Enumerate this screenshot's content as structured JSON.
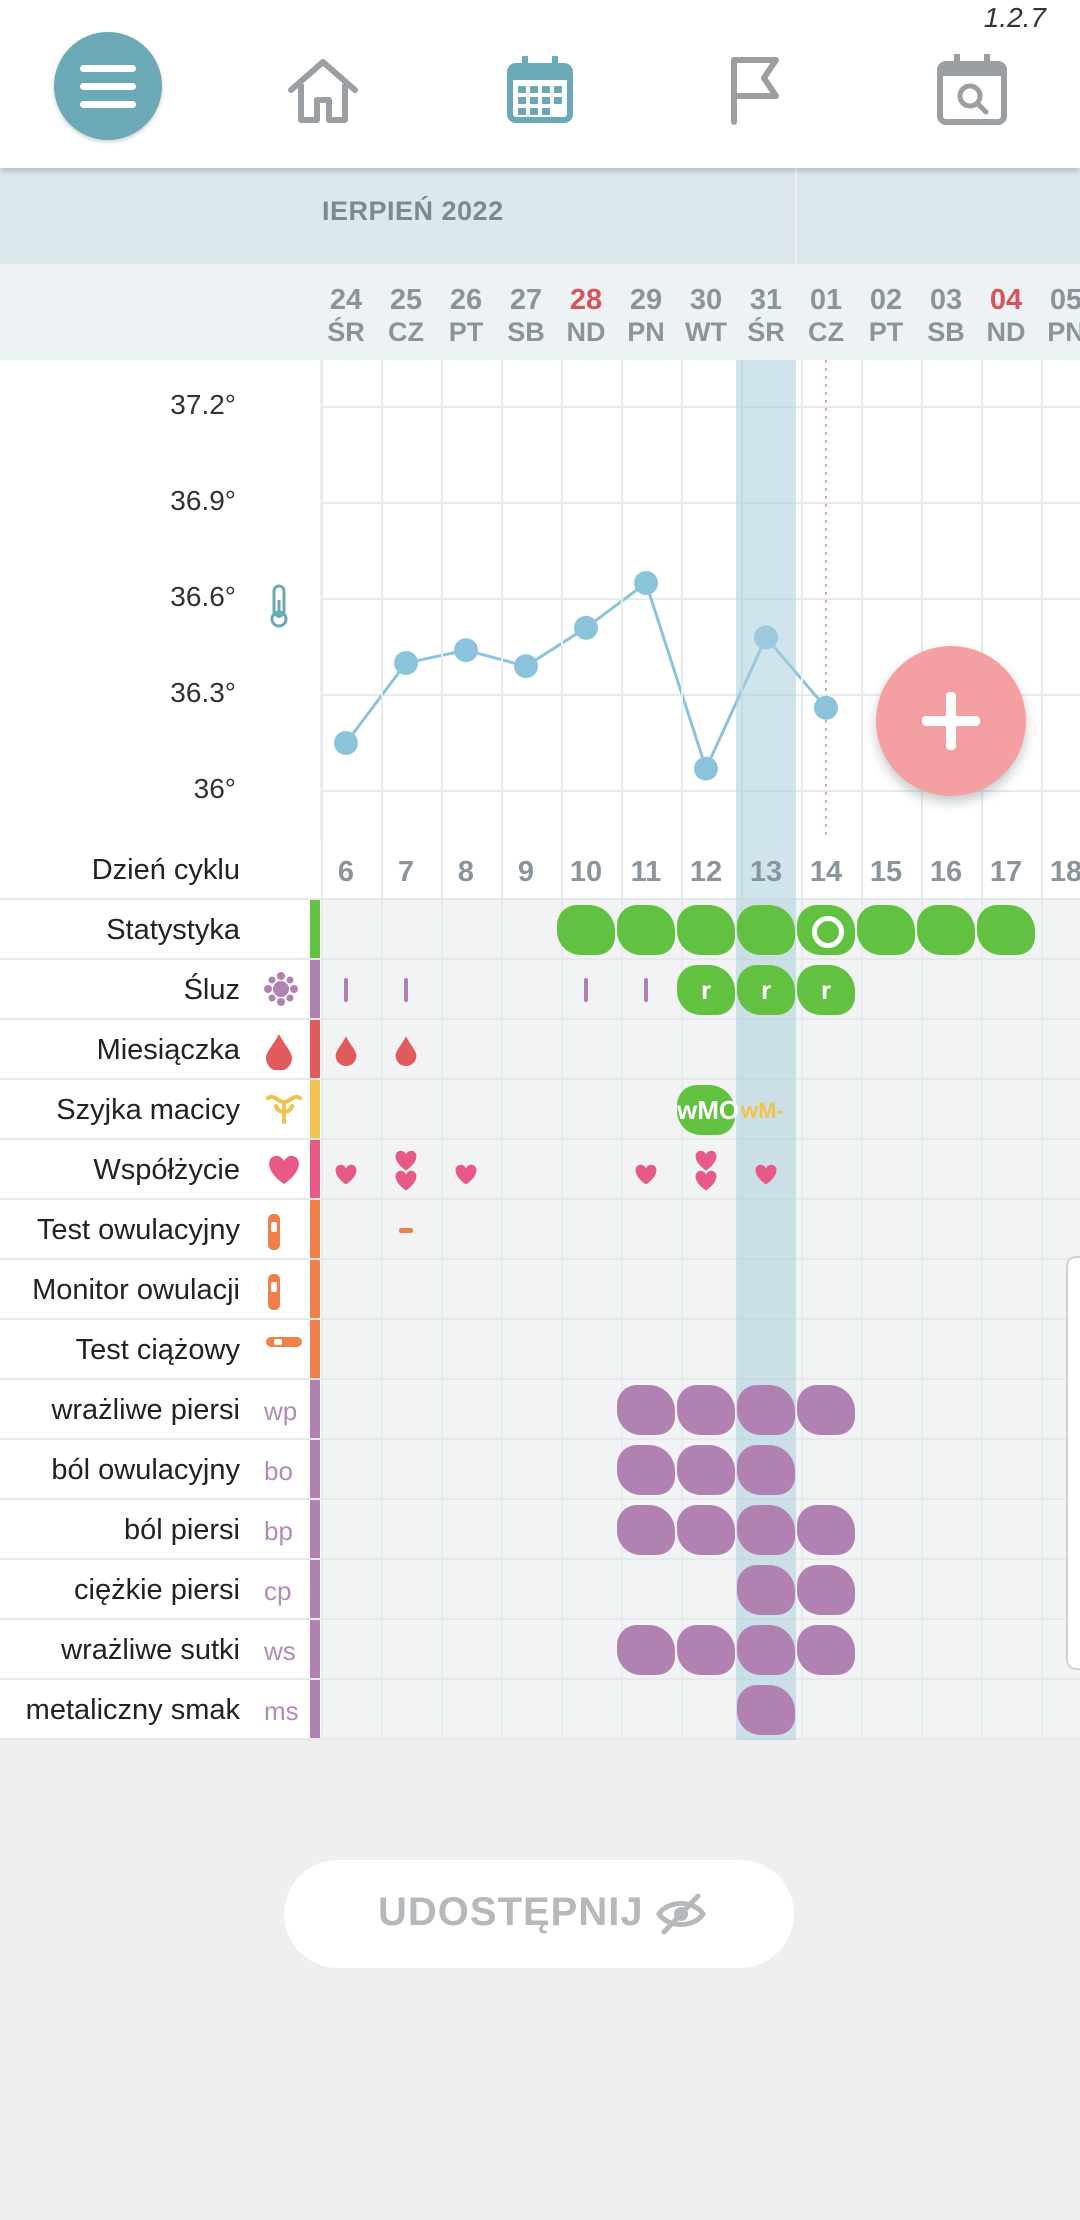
{
  "app": {
    "version": "1.2.7"
  },
  "nav": {
    "items": [
      "menu",
      "home",
      "calendar",
      "flag",
      "calendar-search"
    ],
    "active": "calendar",
    "accent": "#6aa9b5"
  },
  "calendar": {
    "month_label": "IERPIEŃ 2022",
    "dates": [
      {
        "day": "24",
        "weekday": "ŚR"
      },
      {
        "day": "25",
        "weekday": "CZ"
      },
      {
        "day": "26",
        "weekday": "PT"
      },
      {
        "day": "27",
        "weekday": "SB"
      },
      {
        "day": "28",
        "weekday": "ND",
        "sunday": true
      },
      {
        "day": "29",
        "weekday": "PN"
      },
      {
        "day": "30",
        "weekday": "WT"
      },
      {
        "day": "31",
        "weekday": "ŚR"
      },
      {
        "day": "01",
        "weekday": "CZ"
      },
      {
        "day": "02",
        "weekday": "PT"
      },
      {
        "day": "03",
        "weekday": "SB"
      },
      {
        "day": "04",
        "weekday": "ND",
        "sunday": true
      },
      {
        "day": "05",
        "weekday": "PN"
      }
    ],
    "today_index": 7,
    "cycle_days": [
      "6",
      "7",
      "8",
      "9",
      "10",
      "11",
      "12",
      "13",
      "14",
      "15",
      "16",
      "17",
      "18"
    ]
  },
  "temperature": {
    "labels": [
      "37.2°",
      "36.9°",
      "36.6°",
      "36.3°",
      "36°"
    ],
    "series": [
      36.15,
      36.4,
      36.44,
      36.39,
      36.51,
      36.65,
      36.07,
      36.48,
      36.26
    ]
  },
  "rows": [
    {
      "label": "Dzień cyklu",
      "key": "cycle"
    },
    {
      "label": "Statystyka",
      "color": "#62c140"
    },
    {
      "label": "Śluz",
      "color": "#b081b1",
      "icon": "mucus-icon"
    },
    {
      "label": "Miesiączka",
      "color": "#e05a5e",
      "icon": "drop-icon"
    },
    {
      "label": "Szyjka macicy",
      "color": "#f2c14e",
      "icon": "cervix-icon"
    },
    {
      "label": "Współżycie",
      "color": "#e65a85",
      "icon": "heart-icon"
    },
    {
      "label": "Test owulacyjny",
      "color": "#f07f4a",
      "icon": "ovulation-test-icon"
    },
    {
      "label": "Monitor owulacji",
      "color": "#f07f4a",
      "icon": "ovulation-monitor-icon"
    },
    {
      "label": "Test ciążowy",
      "color": "#f07f4a",
      "icon": "pregnancy-test-icon"
    },
    {
      "label": "wrażliwe piersi",
      "abbr": "wp",
      "color": "#b081b1"
    },
    {
      "label": "ból owulacyjny",
      "abbr": "bo",
      "color": "#b081b1"
    },
    {
      "label": "ból piersi",
      "abbr": "bp",
      "color": "#b081b1"
    },
    {
      "label": "ciężkie piersi",
      "abbr": "cp",
      "color": "#b081b1"
    },
    {
      "label": "wrażliwe sutki",
      "abbr": "ws",
      "color": "#b081b1"
    },
    {
      "label": "metaliczny smak",
      "abbr": "ms",
      "color": "#b081b1"
    }
  ],
  "marks": {
    "statystyka": [
      4,
      5,
      6,
      7,
      9,
      10,
      11
    ],
    "statystyka_ring": 8,
    "sluz_lines": [
      0,
      1,
      4,
      5
    ],
    "sluz_r": [
      6,
      7,
      8
    ],
    "sluz_r_text": "r",
    "miesiaczka": [
      0,
      1
    ],
    "cervix_green_text": "wMO",
    "cervix_yellow_text": "wM-",
    "wspolzycie_single": [
      0,
      2,
      5,
      7
    ],
    "wspolzycie_double": [
      1,
      6
    ],
    "test_owulacyjny_dash": 1,
    "symptoms": {
      "wp": [
        5,
        6,
        7,
        8
      ],
      "bo": [
        5,
        6,
        7
      ],
      "bp": [
        5,
        6,
        7,
        8
      ],
      "cp": [
        7,
        8
      ],
      "ws": [
        5,
        6,
        7,
        8
      ],
      "ms": [
        7
      ]
    }
  },
  "share": {
    "label": "UDOSTĘPNIJ"
  }
}
